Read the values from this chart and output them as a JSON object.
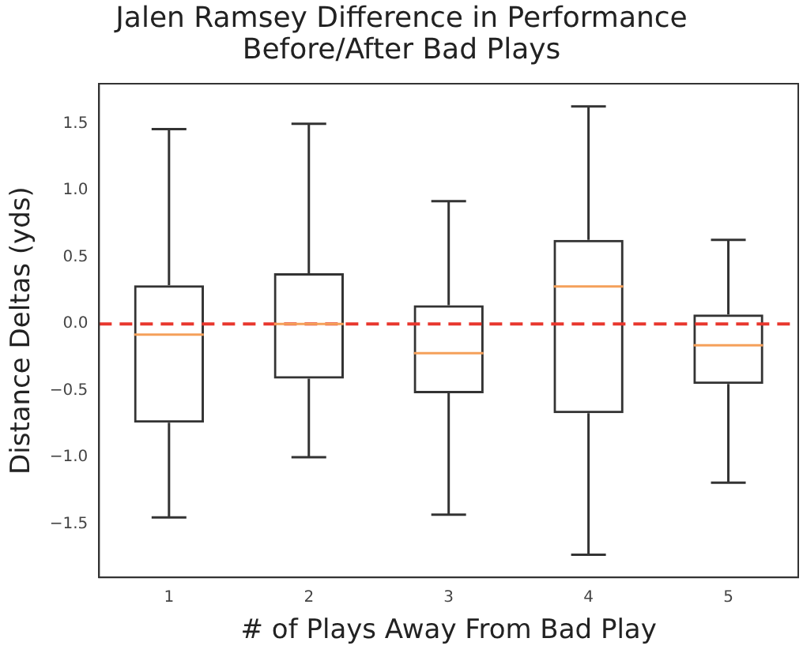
{
  "chart_data": {
    "type": "box",
    "title": "Jalen Ramsey Difference in Performance\nBefore/After Bad Plays",
    "xlabel": "# of Plays Away From Bad Play",
    "ylabel": "Distance Deltas (yds)",
    "categories": [
      "1",
      "2",
      "3",
      "4",
      "5"
    ],
    "color": "#333333",
    "boxes": [
      {
        "low": -1.45,
        "q1": -0.74,
        "median": -0.08,
        "q3": 0.29,
        "high": 1.46
      },
      {
        "low": -1.0,
        "q1": -0.41,
        "median": 0.0,
        "q3": 0.38,
        "high": 1.5
      },
      {
        "low": -1.43,
        "q1": -0.52,
        "median": -0.22,
        "q3": 0.14,
        "high": 0.92
      },
      {
        "low": -1.73,
        "q1": -0.67,
        "median": 0.28,
        "q3": 0.63,
        "high": 1.63
      },
      {
        "low": -1.19,
        "q1": -0.45,
        "median": -0.16,
        "q3": 0.07,
        "high": 0.63
      }
    ],
    "ylim": [
      -1.9,
      1.8
    ],
    "yticks": [
      {
        "value": -1.5,
        "label": "−1.5"
      },
      {
        "value": -1.0,
        "label": "−1.0"
      },
      {
        "value": -0.5,
        "label": "−0.5"
      },
      {
        "value": 0,
        "label": "0.0"
      },
      {
        "value": 0.5,
        "label": "0.5"
      },
      {
        "value": 1.0,
        "label": "1.0"
      },
      {
        "value": 1.5,
        "label": "1.5"
      }
    ],
    "ref_lines": [
      {
        "axis": "y",
        "value": 0,
        "color": "#e8372e",
        "line_style": "dashed"
      }
    ],
    "grid": false,
    "legend": false
  }
}
